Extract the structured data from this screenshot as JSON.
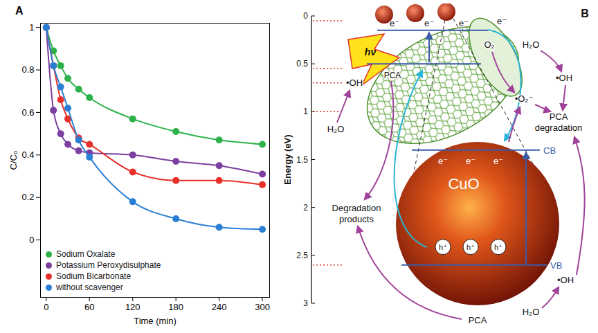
{
  "chart_data": {
    "type": "scatter",
    "panel_label": "A",
    "x_label": "Time (min)",
    "y_label": "C/C₀",
    "x": [
      0,
      10,
      20,
      30,
      45,
      60,
      120,
      180,
      240,
      300
    ],
    "series": [
      {
        "name": "Sodium Oxalate",
        "color": "#2db24a",
        "marker": "circle",
        "line_style": "solid",
        "values": [
          1,
          0.89,
          0.82,
          0.76,
          0.71,
          0.67,
          0.57,
          0.51,
          0.47,
          0.45
        ]
      },
      {
        "name": "Potassium Peroxydisulphate",
        "color": "#7b3fa0",
        "marker": "circle",
        "line_style": "solid",
        "values": [
          1,
          0.61,
          0.5,
          0.45,
          0.42,
          0.41,
          0.4,
          0.37,
          0.35,
          0.31
        ]
      },
      {
        "name": "Sodium Bicarbonate",
        "color": "#e8302a",
        "marker": "circle",
        "line_style": "solid",
        "values": [
          1,
          0.82,
          0.66,
          0.57,
          0.48,
          0.45,
          0.32,
          0.28,
          0.28,
          0.26
        ]
      },
      {
        "name": "without scavenger",
        "color": "#2a7fd4",
        "marker": "circle",
        "line_style": "solid",
        "values": [
          1,
          0.82,
          0.72,
          0.62,
          0.47,
          0.39,
          0.18,
          0.1,
          0.06,
          0.05
        ]
      }
    ],
    "xlim": [
      -8,
      310
    ],
    "xticks": [
      0,
      60,
      120,
      180,
      240,
      300
    ],
    "ylim": [
      -0.27,
      1.02
    ],
    "yticks": [
      0,
      0.2,
      0.4,
      0.6,
      0.8,
      1
    ],
    "grid": false,
    "legend": "bottom-left"
  },
  "diagram": {
    "panel_label": "B",
    "energy_axis": {
      "label": "Energy (eV)",
      "range": [
        0,
        3
      ],
      "ticks": [
        0,
        0.5,
        1,
        1.5,
        2,
        2.5,
        3
      ],
      "marked_levels": [
        0.05,
        0.55,
        0.7,
        1,
        2.6
      ]
    },
    "light": "hν",
    "nanotube": {
      "levels": [
        0.15,
        0.5
      ],
      "electrons": [
        "e⁻",
        "e⁻",
        "e⁻"
      ],
      "transfer_electron": "e⁻",
      "pollutant": "PCA",
      "radical": "•OH",
      "water": "H₂O",
      "products": "Degradation products"
    },
    "cuo": {
      "label": "CuO",
      "cb": {
        "label": "CB",
        "level": 1.4
      },
      "vb": {
        "label": "VB",
        "level": 2.6
      },
      "electrons": [
        "e⁻",
        "e⁻",
        "e⁻"
      ],
      "holes": [
        "h⁺",
        "h⁺",
        "h⁺"
      ]
    },
    "surface": {
      "oxygen": "O₂",
      "water": "H₂O",
      "radical": "•OH",
      "superoxide": "•O₂⁻",
      "result": "PCA degradation"
    },
    "bottom": {
      "water": "H₂O",
      "radical": "•OH",
      "pollutant": "PCA"
    }
  }
}
